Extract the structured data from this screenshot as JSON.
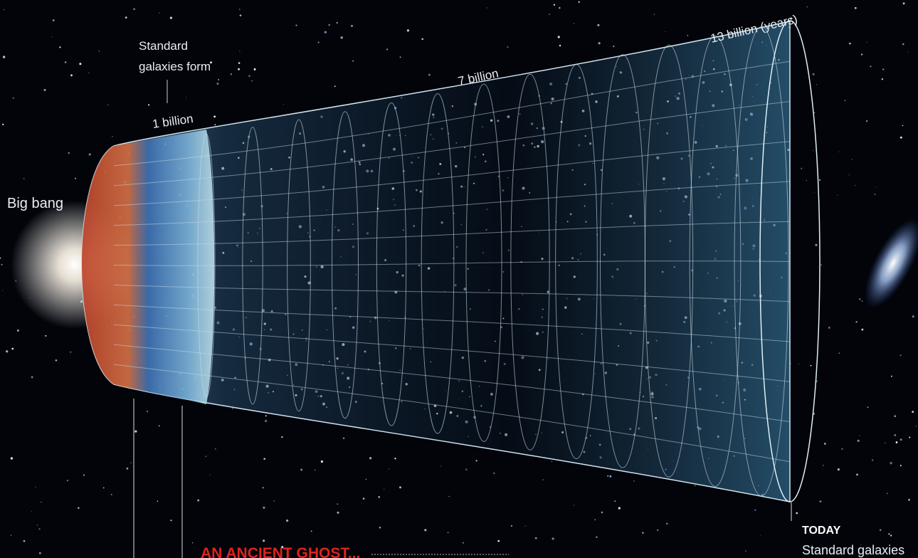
{
  "labels": {
    "standard_galaxies_form": [
      "Standard",
      "galaxies form"
    ],
    "one_billion": "1 billion",
    "seven_billion": "7 billion",
    "thirteen_billion": "13 billion (years)",
    "big_bang": "Big bang",
    "ancient_ghost": "AN ANCIENT GHOST...",
    "today": "TODAY",
    "today_caption": "Standard galaxies"
  }
}
